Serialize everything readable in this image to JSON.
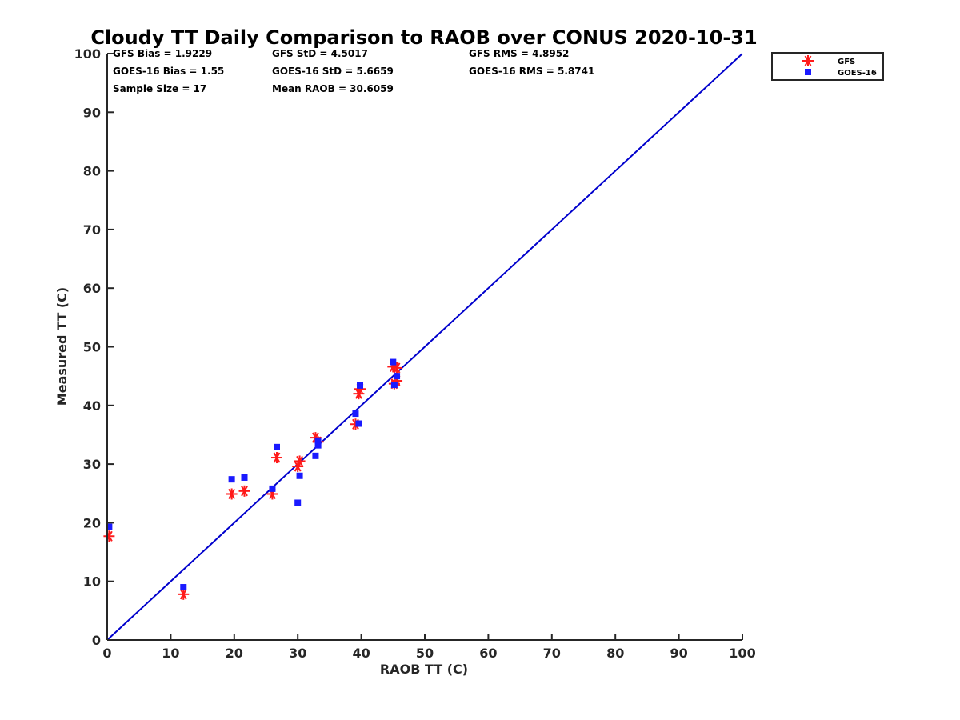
{
  "chart_data": {
    "type": "scatter",
    "title": "Cloudy TT Daily Comparison to RAOB over CONUS 2020-10-31",
    "xlabel": "RAOB TT (C)",
    "ylabel": "Measured TT (C)",
    "xlim": [
      0,
      100
    ],
    "ylim": [
      0,
      100
    ],
    "xticks": [
      "0",
      "10",
      "20",
      "30",
      "40",
      "50",
      "60",
      "70",
      "80",
      "90",
      "100"
    ],
    "yticks": [
      "0",
      "10",
      "20",
      "30",
      "40",
      "50",
      "60",
      "70",
      "80",
      "90",
      "100"
    ],
    "grid": false,
    "legend_position": "outside-top-right",
    "reference_line": {
      "from": [
        0,
        0
      ],
      "to": [
        100,
        100
      ],
      "color": "#0000cc"
    },
    "stats": [
      [
        "GFS Bias = 1.9229",
        "GFS StD = 4.5017",
        "GFS RMS = 4.8952"
      ],
      [
        "GOES-16 Bias = 1.55",
        "GOES-16 StD = 5.6659",
        "GOES-16 RMS = 5.8741"
      ],
      [
        "Sample Size = 17",
        "Mean RAOB = 30.6059",
        ""
      ]
    ],
    "series": [
      {
        "name": "GFS",
        "marker": "asterisk",
        "color": "#ff1a1a",
        "points": [
          [
            0.3,
            17.7
          ],
          [
            12.0,
            7.8
          ],
          [
            19.6,
            24.9
          ],
          [
            21.6,
            25.4
          ],
          [
            26.0,
            24.9
          ],
          [
            26.7,
            31.1
          ],
          [
            30.0,
            29.6
          ],
          [
            30.3,
            30.5
          ],
          [
            32.8,
            34.5
          ],
          [
            33.2,
            33.8
          ],
          [
            39.1,
            36.8
          ],
          [
            39.6,
            42.0
          ],
          [
            39.8,
            42.8
          ],
          [
            45.0,
            46.6
          ],
          [
            45.6,
            46.4
          ],
          [
            45.2,
            43.7
          ],
          [
            45.6,
            44.2
          ]
        ]
      },
      {
        "name": "GOES-16",
        "marker": "square",
        "color": "#1a1aff",
        "points": [
          [
            0.3,
            19.3
          ],
          [
            12.0,
            9.0
          ],
          [
            19.6,
            27.4
          ],
          [
            21.6,
            27.7
          ],
          [
            26.0,
            25.8
          ],
          [
            26.7,
            32.9
          ],
          [
            30.0,
            23.4
          ],
          [
            30.3,
            28.0
          ],
          [
            32.8,
            31.4
          ],
          [
            33.2,
            33.2
          ],
          [
            33.2,
            34.0
          ],
          [
            39.1,
            38.6
          ],
          [
            39.6,
            36.9
          ],
          [
            39.8,
            43.4
          ],
          [
            45.0,
            47.4
          ],
          [
            45.6,
            45.0
          ],
          [
            45.2,
            43.5
          ]
        ]
      }
    ]
  }
}
